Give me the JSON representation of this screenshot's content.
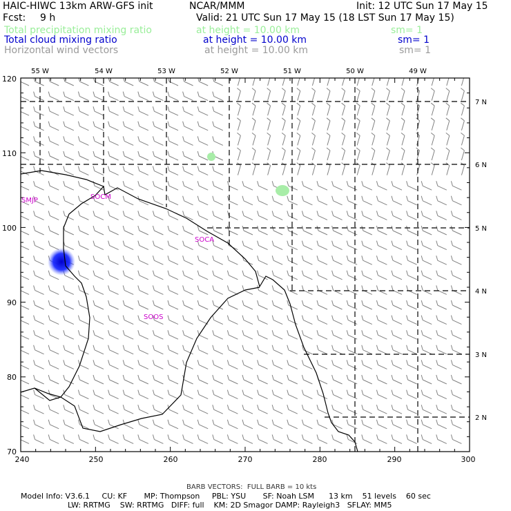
{
  "header": {
    "title": "HAIC-HIWC 13km ARW-GFS init",
    "center": "NCAR/MMM",
    "init": "Init: 12 UTC Sun 17 May 15",
    "fcst_label": "Fcst:",
    "fcst_value": "9 h",
    "valid": "Valid: 21 UTC Sun 17 May 15 (18 LST Sun 17 May 15)"
  },
  "legend": [
    {
      "name": "Total precipitation mixing ratio",
      "height": "at height = 10.00 km",
      "sm": "sm= 1",
      "color": "#99ee99"
    },
    {
      "name": "Total cloud mixing ratio",
      "height": "at height = 10.00 km",
      "sm": "sm= 1",
      "color": "#0000cc"
    },
    {
      "name": "Horizontal wind vectors",
      "height": "at height = 10.00 km",
      "sm": "sm= 1",
      "color": "#9a9a9a"
    }
  ],
  "map": {
    "x_ticks": [
      "240",
      "250",
      "260",
      "270",
      "280",
      "290",
      "300"
    ],
    "y_ticks": [
      "70",
      "80",
      "90",
      "100",
      "110",
      "120"
    ],
    "lon_labels": [
      "55 W",
      "54 W",
      "53 W",
      "52 W",
      "51 W",
      "50 W",
      "49 W"
    ],
    "lat_labels": [
      "7 N",
      "6 N",
      "5 N",
      "4 N",
      "3 N",
      "2 N"
    ],
    "stations": [
      {
        "label": "SMJP",
        "color": "#cc00cc"
      },
      {
        "label": "SOCM",
        "color": "#cc00cc"
      },
      {
        "label": "SOCA",
        "color": "#cc00cc"
      },
      {
        "label": "SOOS",
        "color": "#cc00cc"
      }
    ],
    "barb_color": "#808080",
    "coast_color": "#000000",
    "grid_color": "#000000"
  },
  "footer": {
    "barb_note": "BARB VECTORS:  FULL BARB = 10 kts",
    "line1": "Model Info: V3.6.1     CU: KF       MP: Thompson     PBL: YSU       SF: Noah LSM      13 km    51 levels    60 sec",
    "line2": "LW: RRTMG    SW: RRTMG   DIFF: full    KM: 2D Smagor DAMP: Rayleigh3   SFLAY: MM5"
  }
}
